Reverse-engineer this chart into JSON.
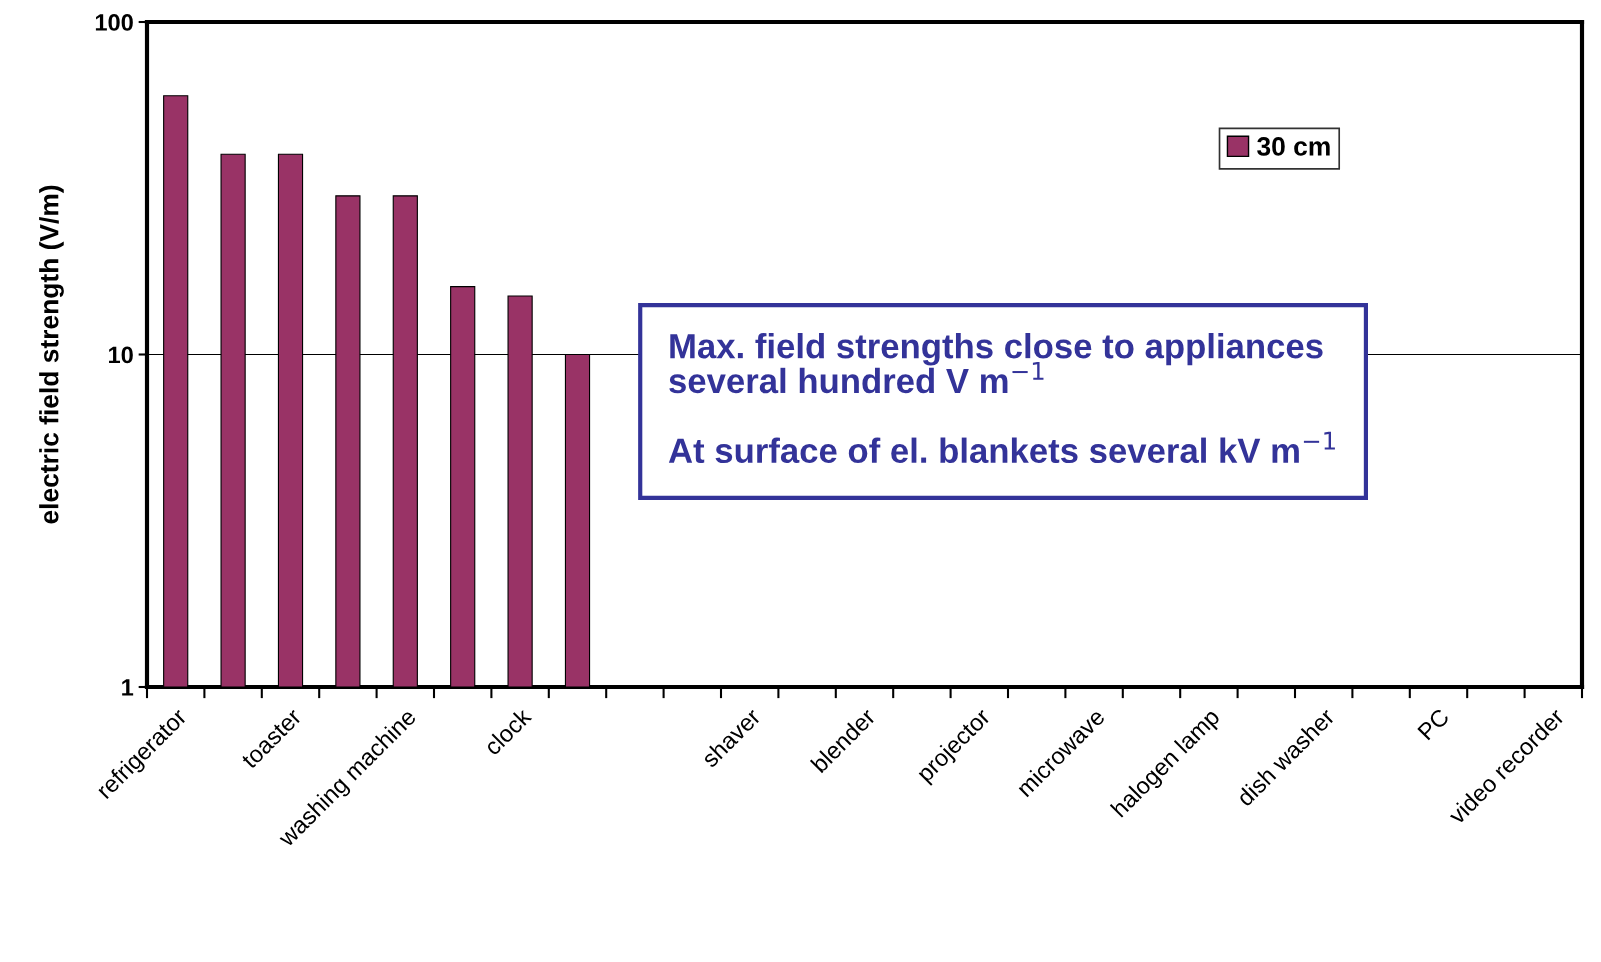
{
  "chart_data": {
    "type": "bar",
    "ylabel": "electric field strength (V/m)",
    "categories": [
      "refrigerator",
      null,
      "toaster",
      null,
      "washing machine",
      null,
      "clock",
      null,
      null,
      null,
      "shaver",
      null,
      "blender",
      null,
      "projector",
      null,
      "microwave",
      null,
      "halogen lamp",
      null,
      "dish washer",
      null,
      "PC",
      null,
      "video recorder"
    ],
    "series": [
      {
        "name": "30 cm",
        "color": "#993366",
        "values": [
          60,
          40,
          40,
          30,
          30,
          16,
          15,
          10,
          null,
          null,
          null,
          null,
          null,
          null,
          null,
          null,
          null,
          null,
          null,
          null,
          null,
          null,
          null,
          null,
          null
        ]
      }
    ],
    "log": "y",
    "ylim": [
      1,
      100
    ],
    "yticks": [
      1,
      10,
      100
    ],
    "grid": "y",
    "legend": "top right",
    "annotations": [
      "Max. field strengths close to appliances\nseveral hundred V m$^{−1}$",
      "At surface of el. blankets several kV m$^{−1}$"
    ]
  }
}
